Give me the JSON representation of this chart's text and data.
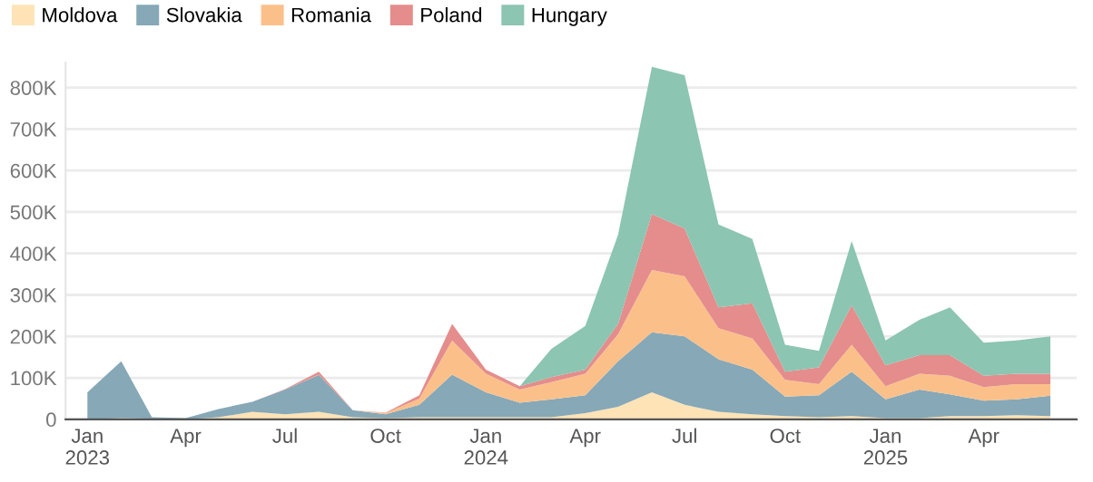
{
  "chart_data": {
    "type": "area",
    "stacked": true,
    "x": [
      "2023-01",
      "2023-02",
      "2023-03",
      "2023-04",
      "2023-05",
      "2023-06",
      "2023-07",
      "2023-08",
      "2023-09",
      "2023-10",
      "2023-11",
      "2023-12",
      "2024-01",
      "2024-02",
      "2024-03",
      "2024-04",
      "2024-05",
      "2024-06",
      "2024-07",
      "2024-08",
      "2024-09",
      "2024-10",
      "2024-11",
      "2024-12",
      "2025-01",
      "2025-02",
      "2025-03",
      "2025-04",
      "2025-05",
      "2025-06"
    ],
    "series": [
      {
        "name": "Moldova",
        "color": "#fde3b6",
        "values": [
          0,
          3000,
          2000,
          0,
          5000,
          18000,
          12000,
          18000,
          5000,
          3000,
          5000,
          5000,
          5000,
          5000,
          5000,
          15000,
          30000,
          65000,
          35000,
          18000,
          12000,
          8000,
          5000,
          8000,
          3000,
          3000,
          8000,
          8000,
          10000,
          8000
        ]
      },
      {
        "name": "Slovakia",
        "color": "#86a8b7",
        "values": [
          65000,
          137000,
          3000,
          3000,
          20000,
          24000,
          60000,
          89000,
          17000,
          9000,
          30000,
          103000,
          60000,
          35000,
          43000,
          43000,
          110000,
          145000,
          165000,
          127000,
          108000,
          47000,
          53000,
          107000,
          45000,
          69000,
          52000,
          37000,
          38000,
          49000
        ]
      },
      {
        "name": "Romania",
        "color": "#fbc08a",
        "values": [
          0,
          0,
          0,
          0,
          0,
          0,
          0,
          1000,
          0,
          3000,
          15000,
          82000,
          45000,
          32000,
          42000,
          52000,
          65000,
          150000,
          145000,
          75000,
          75000,
          40000,
          27000,
          65000,
          32000,
          38000,
          45000,
          33000,
          37000,
          28000
        ]
      },
      {
        "name": "Poland",
        "color": "#e48d8c",
        "values": [
          0,
          0,
          0,
          0,
          0,
          0,
          1000,
          7000,
          0,
          1000,
          8000,
          40000,
          10000,
          8000,
          12000,
          10000,
          25000,
          135000,
          115000,
          50000,
          85000,
          20000,
          40000,
          95000,
          50000,
          45000,
          50000,
          27000,
          25000,
          25000
        ]
      },
      {
        "name": "Hungary",
        "color": "#8cc5b2",
        "values": [
          0,
          0,
          0,
          0,
          0,
          0,
          0,
          0,
          0,
          0,
          0,
          0,
          0,
          0,
          68000,
          105000,
          215000,
          355000,
          370000,
          200000,
          155000,
          65000,
          40000,
          155000,
          60000,
          85000,
          115000,
          80000,
          80000,
          90000
        ]
      }
    ],
    "xlim": [
      "2022-12-12",
      "2025-06-25"
    ],
    "xticks": [
      {
        "value": "2023-01",
        "label": "Jan\n2023"
      },
      {
        "value": "2023-04",
        "label": "Apr"
      },
      {
        "value": "2023-07",
        "label": "Jul"
      },
      {
        "value": "2023-10",
        "label": "Oct"
      },
      {
        "value": "2024-01",
        "label": "Jan\n2024"
      },
      {
        "value": "2024-04",
        "label": "Apr"
      },
      {
        "value": "2024-07",
        "label": "Jul"
      },
      {
        "value": "2024-10",
        "label": "Oct"
      },
      {
        "value": "2025-01",
        "label": "Jan\n2025"
      },
      {
        "value": "2025-04",
        "label": "Apr"
      }
    ],
    "ylim": [
      0,
      860000
    ],
    "yticks": [
      0,
      {
        "value": 100000,
        "label": "100K"
      },
      {
        "value": 200000,
        "label": "200K"
      },
      {
        "value": 300000,
        "label": "300K"
      },
      {
        "value": 400000,
        "label": "400K"
      },
      {
        "value": 500000,
        "label": "500K"
      },
      {
        "value": 600000,
        "label": "600K"
      },
      {
        "value": 700000,
        "label": "700K"
      },
      {
        "value": 800000,
        "label": "800K"
      }
    ],
    "grid": "y",
    "legend": "top left"
  }
}
